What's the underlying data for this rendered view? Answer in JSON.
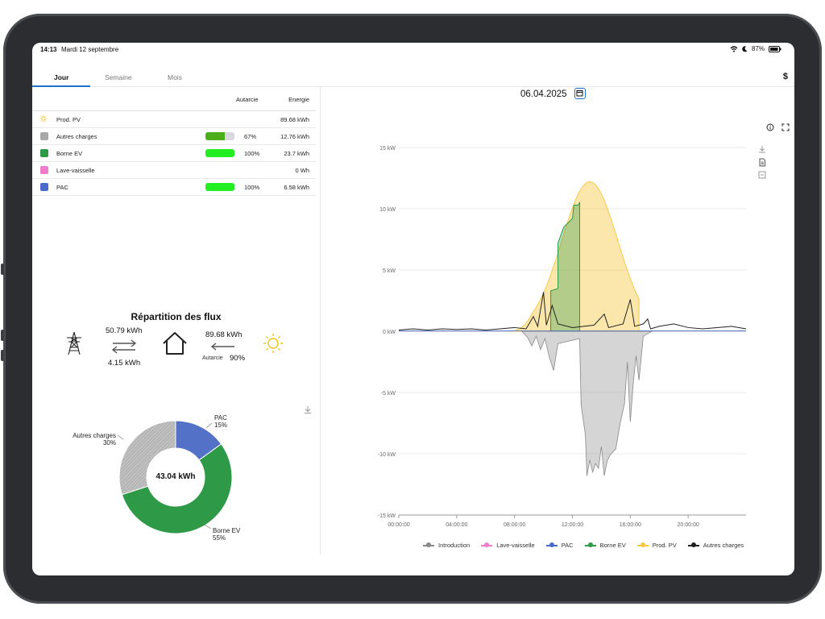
{
  "status": {
    "time": "14:13",
    "date": "Mardi 12 septembre",
    "battery": "87%"
  },
  "tabs": [
    {
      "label": "Jour"
    },
    {
      "label": "Semaine"
    },
    {
      "label": "Mois"
    }
  ],
  "table": {
    "col_autarcie": "Autarcie",
    "col_energie": "Energie",
    "rows": [
      {
        "label": "Prod. PV",
        "color": "#f5c518",
        "icon": "sun-icon",
        "autarcie": null,
        "pct": "",
        "energy": "89.68 kWh"
      },
      {
        "label": "Autres charges",
        "color": "#a8a8a8",
        "icon": "square-icon",
        "autarcie": 0.67,
        "bar_color": "#4caf1a",
        "pct": "67%",
        "energy": "12.76 kWh"
      },
      {
        "label": "Borne EV",
        "color": "#2e9a48",
        "icon": "square-icon",
        "autarcie": 1.0,
        "bar_color": "#22ee22",
        "pct": "100%",
        "energy": "23.7 kWh"
      },
      {
        "label": "Lave-vaisselle",
        "color": "#ee7cc8",
        "icon": "square-icon",
        "autarcie": null,
        "pct": "",
        "energy": "0 Wh"
      },
      {
        "label": "PAC",
        "color": "#4a6cc8",
        "icon": "square-icon",
        "autarcie": 1.0,
        "bar_color": "#22ee22",
        "pct": "100%",
        "energy": "6.58 kWh"
      }
    ]
  },
  "flux": {
    "title": "Répartition des flux",
    "grid_in": "50.79 kWh",
    "grid_out": "4.15 kWh",
    "pv": "89.68 kWh",
    "autarcie_label": "Autarcie",
    "autarcie_value": "90%"
  },
  "donut": {
    "center": "43.04 kWh",
    "slices": [
      {
        "name": "PAC",
        "value": 15,
        "label": "15%",
        "color": "#5471c8"
      },
      {
        "name": "Borne EV",
        "value": 55,
        "label": "55%",
        "color": "#2e9a48"
      },
      {
        "name": "Autres charges",
        "value": 30,
        "label": "30%",
        "color": "#b0b0b0"
      }
    ]
  },
  "chart": {
    "date": "06.04.2025",
    "colors": {
      "pv": "#f7c948",
      "ev": "#2e9a48",
      "grid": "#888888",
      "autres": "#222222",
      "pac": "#4a6cc8",
      "lave": "#ee7cc8"
    },
    "y_ticks": [
      "15 kW",
      "10 kW",
      "5 kW",
      "0 kW",
      "-5 kW",
      "-10 kW",
      "-15 kW"
    ],
    "x_ticks": [
      "00:00:00",
      "04:00:00",
      "08:00:00",
      "12:00:00",
      "16:00:00",
      "20:00:00"
    ],
    "legend": [
      {
        "name": "Introduction",
        "color": "#888888"
      },
      {
        "name": "Lave-vaisselle",
        "color": "#ee7cc8"
      },
      {
        "name": "PAC",
        "color": "#4a6cc8"
      },
      {
        "name": "Borne EV",
        "color": "#2e9a48"
      },
      {
        "name": "Prod. PV",
        "color": "#f7c948"
      },
      {
        "name": "Autres charges",
        "color": "#222222"
      }
    ]
  }
}
